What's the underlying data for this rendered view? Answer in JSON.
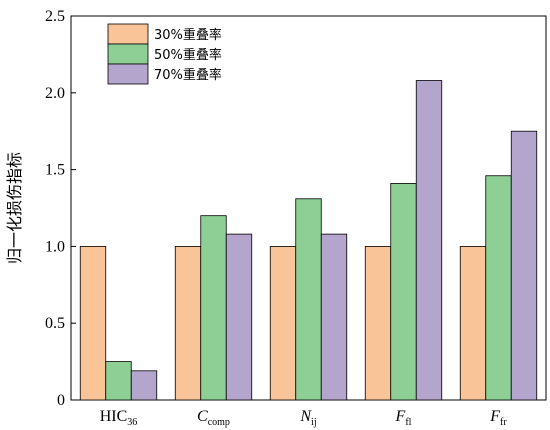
{
  "chart_data": {
    "type": "bar",
    "ylabel": "归一化损伤指标",
    "xlabel": "",
    "ylim": [
      0,
      2.5
    ],
    "yticks": [
      "0",
      "0.5",
      "1.0",
      "1.5",
      "2.0",
      "2.5"
    ],
    "ytick_values": [
      0,
      0.5,
      1.0,
      1.5,
      2.0,
      2.5
    ],
    "categories": [
      {
        "main": "HIC",
        "sub": "36",
        "italic": false
      },
      {
        "main": "C",
        "sub": "comp",
        "italic": true
      },
      {
        "main": "N",
        "sub": "ij",
        "italic": true
      },
      {
        "main": "F",
        "sub": "fl",
        "italic": true
      },
      {
        "main": "F",
        "sub": "fr",
        "italic": true
      }
    ],
    "series": [
      {
        "name": "30%重叠率",
        "color": "#F9C498",
        "values": [
          1.0,
          1.0,
          1.0,
          1.0,
          1.0
        ]
      },
      {
        "name": "50%重叠率",
        "color": "#8ECF95",
        "values": [
          0.25,
          1.2,
          1.31,
          1.41,
          1.46
        ]
      },
      {
        "name": "70%重叠率",
        "color": "#B3A5CC",
        "values": [
          0.19,
          1.08,
          1.08,
          2.08,
          1.75
        ]
      }
    ],
    "legend_position": "top-left",
    "grid": false
  }
}
